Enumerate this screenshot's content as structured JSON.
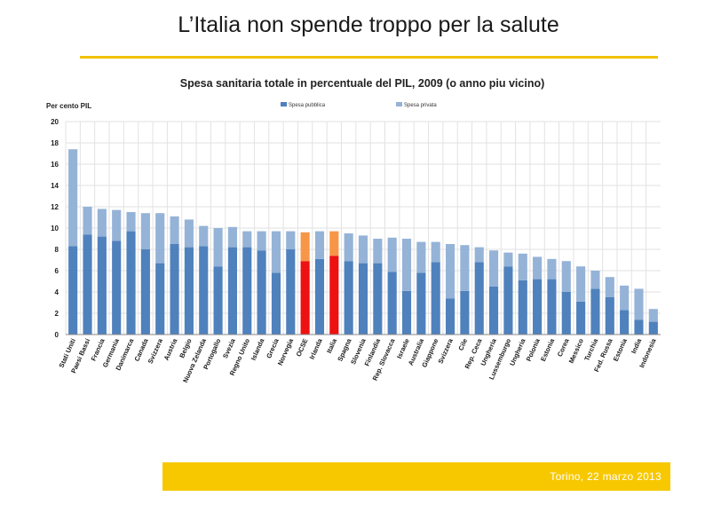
{
  "slide": {
    "title": "L’Italia non spende troppo per la salute",
    "footer": "Torino, 22 marzo 2013"
  },
  "colors": {
    "public": "#4f81bd",
    "private": "#95b3d7",
    "italy_public": "#ee1111",
    "italy_private": "#f79646",
    "grid": "#e2e2e2",
    "rule": "#f2c200",
    "footer_bar": "#f7c800"
  },
  "chart_data": {
    "type": "bar",
    "stacked": true,
    "title": "Spesa sanitaria totale in percentuale del PIL, 2009 (o anno piu vicino)",
    "ylabel": "Per cento PIL",
    "ylim": [
      0,
      20
    ],
    "yticks": [
      0,
      2,
      4,
      6,
      8,
      10,
      12,
      14,
      16,
      18,
      20
    ],
    "grid": true,
    "legend_position": "top",
    "highlight": [
      "OCSE",
      "Italia"
    ],
    "categories": [
      "Stati Uniti",
      "Paesi Bassi",
      "Francia",
      "Germania",
      "Danimarca",
      "Canada",
      "Svizzera",
      "Austria",
      "Belgio",
      "Nuova Zelanda",
      "Portogallo",
      "Svezia",
      "Regno Unito",
      "Islanda",
      "Grecia",
      "Norvegia",
      "OCSE",
      "Irlanda",
      "Italia",
      "Spagna",
      "Slovenia",
      "Finlandia",
      "Rep. Slovacca",
      "Israele",
      "Australia",
      "Giappone",
      "Svizzera",
      "Cile",
      "Rep. Ceca",
      "Ungheria",
      "Lussemburgo",
      "Ungheria",
      "Polonia",
      "Estonia",
      "Corea",
      "Messico",
      "Turchia",
      "Fed. Russa",
      "Estonia",
      "India",
      "Indonesia"
    ],
    "series": [
      {
        "name": "Spesa pubblica",
        "values": [
          8.3,
          9.4,
          9.2,
          8.8,
          9.7,
          8.0,
          6.7,
          8.5,
          8.2,
          8.3,
          6.4,
          8.2,
          8.2,
          7.9,
          5.8,
          8.0,
          6.9,
          7.1,
          7.4,
          6.9,
          6.7,
          6.7,
          5.9,
          4.1,
          5.8,
          6.8,
          3.4,
          4.1,
          6.8,
          4.5,
          6.4,
          5.1,
          5.2,
          5.2,
          4.0,
          3.1,
          4.3,
          3.5,
          2.3,
          1.4,
          1.2
        ]
      },
      {
        "name": "Spesa privata",
        "values": [
          9.1,
          2.6,
          2.6,
          2.9,
          1.8,
          3.4,
          4.7,
          2.6,
          2.6,
          1.9,
          3.6,
          1.9,
          1.5,
          1.8,
          3.9,
          1.7,
          2.7,
          2.6,
          2.3,
          2.6,
          2.6,
          2.3,
          3.2,
          4.9,
          2.9,
          1.9,
          5.1,
          4.3,
          1.4,
          3.4,
          1.3,
          2.5,
          2.1,
          1.9,
          2.9,
          3.3,
          1.7,
          1.9,
          2.3,
          2.9,
          1.2
        ]
      }
    ]
  }
}
